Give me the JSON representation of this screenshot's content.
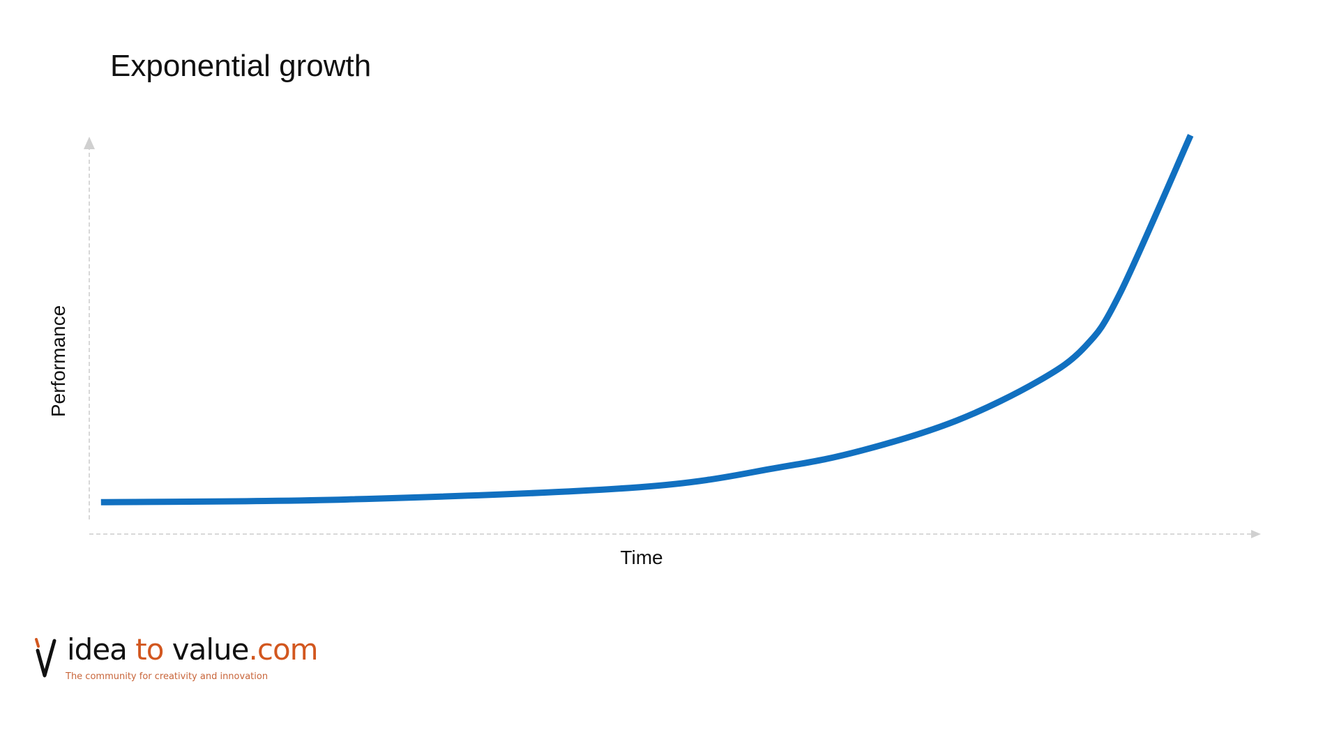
{
  "chart_data": {
    "type": "line",
    "title": "Exponential growth",
    "xlabel": "Time",
    "ylabel": "Performance",
    "grid": false,
    "ticks": false,
    "xlim": [
      0,
      100
    ],
    "ylim": [
      0,
      100
    ],
    "series": [
      {
        "x": [
          1,
          22,
          47,
          59,
          66,
          74,
          81,
          85,
          88,
          94
        ],
        "y": [
          4.5,
          5.2,
          8.4,
          13.6,
          18,
          25.7,
          36,
          45,
          59,
          100
        ],
        "color": "#1170c0"
      }
    ],
    "axis_color": "#d0d0d0"
  },
  "logo": {
    "word1": "idea ",
    "word2": "to ",
    "word3": "value",
    "word4": ".com",
    "tagline": "The community for creativity and innovation",
    "dark_color": "#111111",
    "accent_color": "#d2571f"
  }
}
